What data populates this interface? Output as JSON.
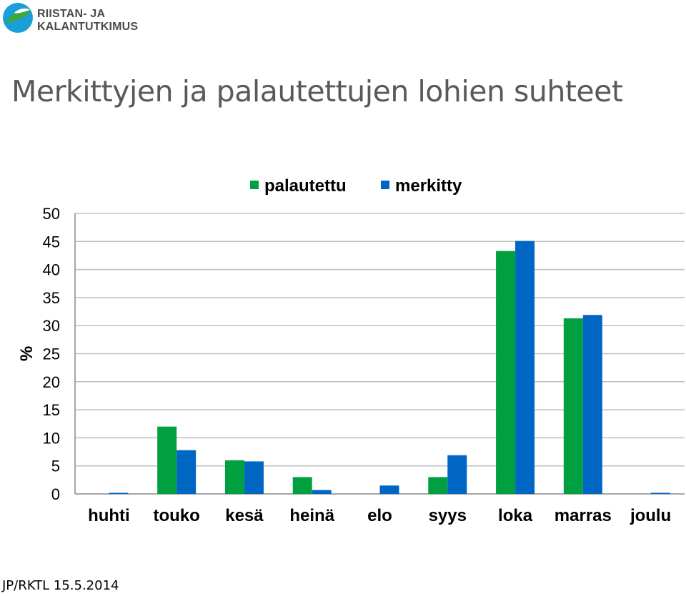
{
  "logo": {
    "text": "RIISTAN- JA KALANTUTKIMUS",
    "icon": "fish-logo-icon"
  },
  "title": "Merkittyjen ja palautettujen lohien suhteet",
  "footer": "JP/RKTL 15.5.2014",
  "chart_data": {
    "type": "bar",
    "title": "Merkittyjen ja palautettujen lohien suhteet",
    "ylabel": "%",
    "xlabel": "",
    "ylim": [
      0,
      50
    ],
    "yticks": [
      0,
      5,
      10,
      15,
      20,
      25,
      30,
      35,
      40,
      45,
      50
    ],
    "grid": true,
    "legend_position": "top",
    "categories": [
      "huhti",
      "touko",
      "kesä",
      "heinä",
      "elo",
      "syys",
      "loka",
      "marras",
      "joulu"
    ],
    "series": [
      {
        "name": "palautettu",
        "color": "#00A040",
        "values": [
          0,
          12,
          6,
          3,
          0,
          3,
          43.3,
          31.3,
          0
        ]
      },
      {
        "name": "merkitty",
        "color": "#0066C4",
        "values": [
          0.2,
          7.8,
          5.8,
          0.7,
          1.5,
          6.9,
          45.1,
          31.9,
          0.2
        ]
      }
    ]
  }
}
